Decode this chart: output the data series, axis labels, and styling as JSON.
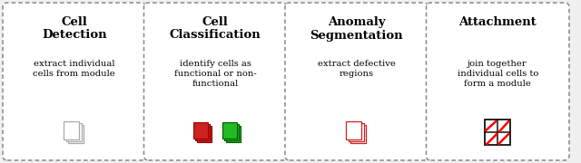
{
  "cards": [
    {
      "title": "Cell\nDetection",
      "description": "extract individual\ncells from module",
      "icon_type": "stacked_pages"
    },
    {
      "title": "Cell\nClassification",
      "description": "identify cells as\nfunctional or non-\nfunctional",
      "icon_type": "red_green_pages"
    },
    {
      "title": "Anomaly\nSegmentation",
      "description": "extract defective\nregions",
      "icon_type": "red_stacked_pages"
    },
    {
      "title": "Attachment",
      "description": "join together\nindividual cells to\nform a module",
      "icon_type": "grid_with_lines"
    }
  ],
  "background_color": "#f0f0f0",
  "card_bg": "#ffffff",
  "card_border": "#888888",
  "title_fontsize": 9.5,
  "desc_fontsize": 7.2
}
